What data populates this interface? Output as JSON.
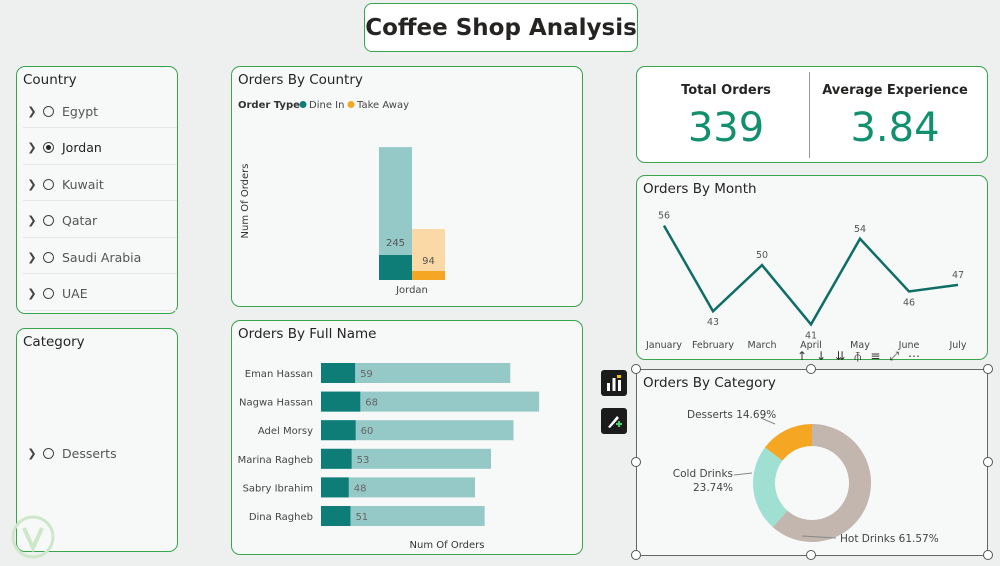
{
  "app_title": "Coffee Shop Analysis",
  "country_slicer": {
    "title": "Country",
    "items": [
      {
        "label": "Egypt",
        "selected": false
      },
      {
        "label": "Jordan",
        "selected": true
      },
      {
        "label": "Kuwait",
        "selected": false
      },
      {
        "label": "Qatar",
        "selected": false
      },
      {
        "label": "Saudi Arabia",
        "selected": false
      },
      {
        "label": "UAE",
        "selected": false
      }
    ]
  },
  "category_slicer": {
    "title": "Category",
    "items": [
      {
        "label": "Desserts",
        "selected": false
      }
    ]
  },
  "cards": {
    "total_orders_label": "Total Orders",
    "total_orders_value": "339",
    "avg_experience_label": "Average Experience",
    "avg_experience_value": "3.84"
  },
  "colors": {
    "accent": "#12906d",
    "dine_in": "#0e7d78",
    "dine_in_light": "#94c9c7",
    "take_away": "#f5a623",
    "take_away_light": "#fbd9a6",
    "hot_drinks": "#c2b6ae",
    "cold_drinks": "#9fe0d3",
    "desserts": "#f5a623",
    "line": "#0e6e66"
  },
  "chart_data": [
    {
      "type": "bar",
      "title": "Orders By Country",
      "legend_title": "Order Type",
      "ylabel": "Num Of Orders",
      "categories": [
        "Jordan"
      ],
      "series": [
        {
          "name": "Dine In",
          "values": [
            245
          ]
        },
        {
          "name": "Take Away",
          "values": [
            94
          ]
        }
      ],
      "ylim": [
        0,
        260
      ]
    },
    {
      "type": "bar",
      "title": "Orders By Full Name",
      "xlabel": "Num Of Orders",
      "categories": [
        "Eman Hassan",
        "Nagwa Hassan",
        "Adel Morsy",
        "Marina Ragheb",
        "Sabry Ibrahim",
        "Dina Ragheb"
      ],
      "values": [
        59,
        68,
        60,
        53,
        48,
        51
      ]
    },
    {
      "type": "line",
      "title": "Orders By Month",
      "categories": [
        "January",
        "February",
        "March",
        "April",
        "May",
        "June",
        "July"
      ],
      "values": [
        56,
        43,
        50,
        41,
        54,
        46,
        47
      ]
    },
    {
      "type": "pie",
      "title": "Orders By Category",
      "slices": [
        {
          "label": "Hot Drinks",
          "value": 61.57,
          "display": "Hot Drinks 61.57%"
        },
        {
          "label": "Cold Drinks",
          "value": 23.74,
          "display_line1": "Cold Drinks",
          "display_line2": "23.74%"
        },
        {
          "label": "Desserts",
          "value": 14.69,
          "display": "Desserts 14.69%"
        }
      ]
    }
  ]
}
